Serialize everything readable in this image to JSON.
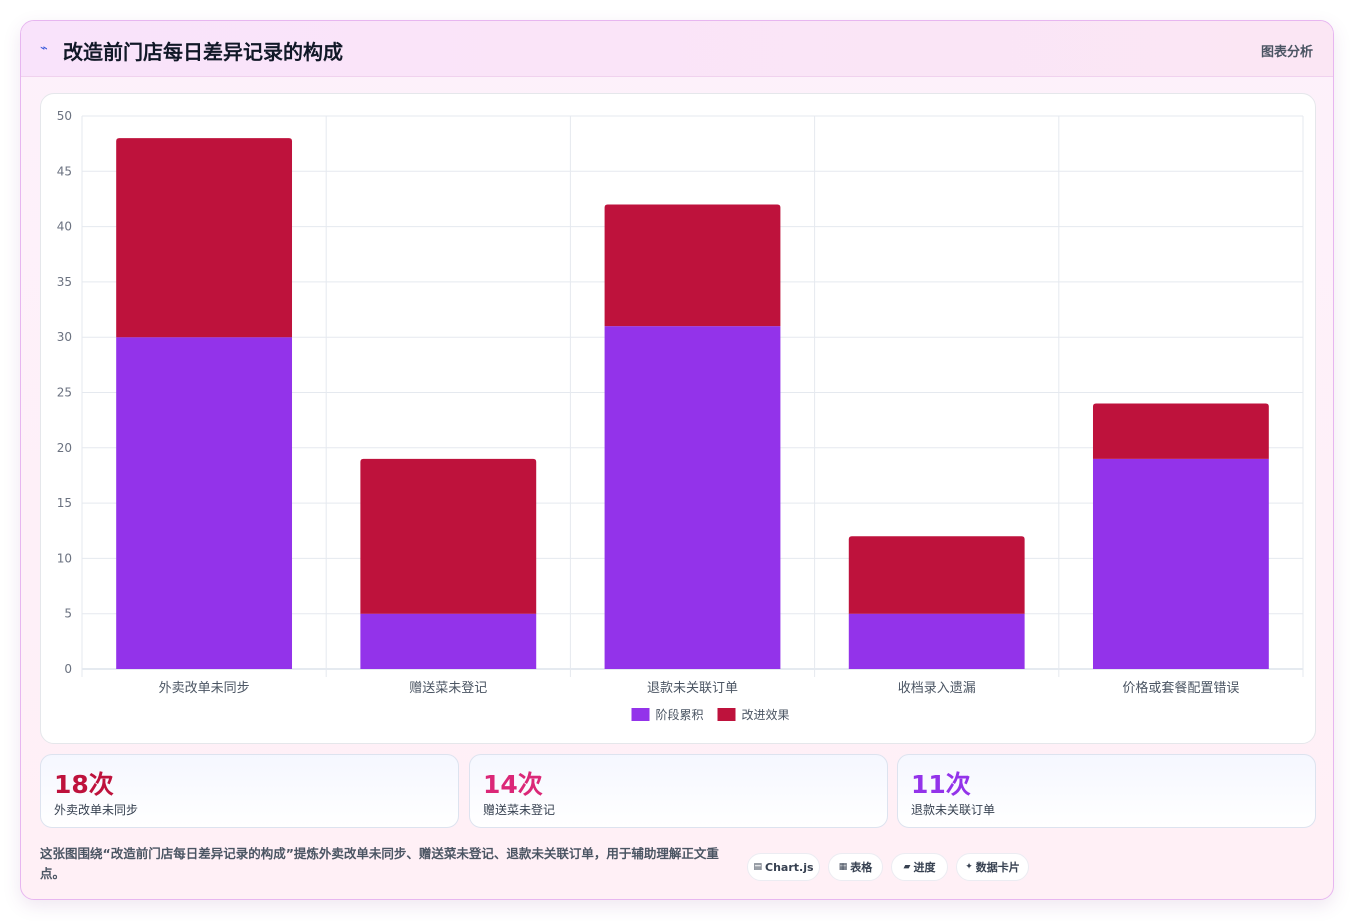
{
  "header": {
    "title": "改造前门店每日差异记录的构成",
    "title_icon": "⌁",
    "link_label": "图表分析"
  },
  "chart_data": {
    "type": "bar",
    "stacked": true,
    "categories": [
      "外卖改单未同步",
      "赠送菜未登记",
      "退款未关联订单",
      "收档录入遗漏",
      "价格或套餐配置错误"
    ],
    "series": [
      {
        "name": "阶段累积",
        "color": "#9333ea",
        "values": [
          30,
          5,
          31,
          5,
          19
        ]
      },
      {
        "name": "改进效果",
        "color": "#be123c",
        "values": [
          18,
          14,
          11,
          7,
          5
        ]
      }
    ],
    "ylim": [
      0,
      50
    ],
    "yticks": [
      0,
      5,
      10,
      15,
      20,
      25,
      30,
      35,
      40,
      45,
      50
    ],
    "grid": true,
    "legend_position": "bottom"
  },
  "stats": [
    {
      "value": "18次",
      "label": "外卖改单未同步",
      "color": "#be123c"
    },
    {
      "value": "14次",
      "label": "赠送菜未登记",
      "color": "#db2777"
    },
    {
      "value": "11次",
      "label": "退款未关联订单",
      "color": "#9333ea"
    }
  ],
  "note": "这张图围绕“改造前门店每日差异记录的构成”提炼外卖改单未同步、赠送菜未登记、退款未关联订单，用于辅助理解正文重点。",
  "chips": [
    {
      "icon": "▤",
      "label": "Chart.js"
    },
    {
      "icon": "▦",
      "label": "表格"
    },
    {
      "icon": "▰",
      "label": "进度"
    },
    {
      "icon": "✦",
      "label": "数据卡片"
    }
  ]
}
